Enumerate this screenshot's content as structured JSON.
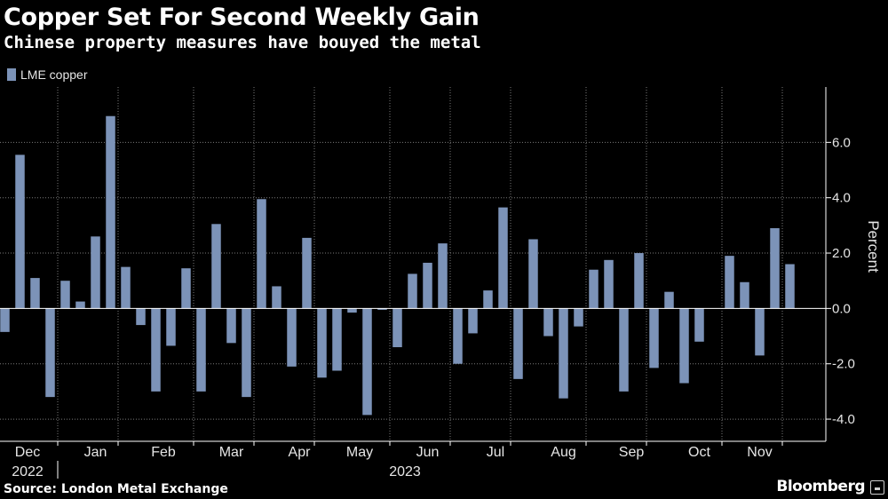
{
  "header": {
    "title": "Copper Set For Second Weekly Gain",
    "subtitle": "Chinese property measures have bouyed the metal"
  },
  "legend": {
    "label": "LME copper"
  },
  "footer": {
    "source": "Source: London Metal Exchange",
    "brand": "Bloomberg"
  },
  "colors": {
    "background": "#000000",
    "bar": "#7c93b8",
    "grid": "#7a7a7a",
    "axis": "#ffffff",
    "text": "#e6e6e6"
  },
  "chart_data": {
    "type": "bar",
    "ylabel": "Percent",
    "ylim": [
      -4.8,
      8.0
    ],
    "yticks": [
      -4.0,
      -2.0,
      0.0,
      2.0,
      4.0,
      6.0
    ],
    "ytick_labels": [
      "-4.0",
      "-2.0",
      "0.0",
      "2.0",
      "4.0",
      "6.0"
    ],
    "grid": true,
    "legend_placement": "top-left",
    "y_axis_side": "right",
    "month_labels": [
      "Dec",
      "Jan",
      "Feb",
      "Mar",
      "Apr",
      "May",
      "Jun",
      "Jul",
      "Aug",
      "Sep",
      "Oct",
      "Nov"
    ],
    "month_week_index": [
      1.5,
      6.0,
      10.5,
      15.0,
      19.5,
      23.5,
      28.0,
      32.5,
      37.0,
      41.5,
      46.0,
      50.0
    ],
    "month_boundaries": [
      4,
      8,
      13,
      17,
      21,
      26,
      30,
      34,
      39,
      43,
      48,
      52
    ],
    "year_labels": [
      {
        "label": "2022",
        "week_index": 1.5
      },
      {
        "label": "2023",
        "week_index": 26.5
      }
    ],
    "year_divider_week_index": 4,
    "series": [
      {
        "name": "LME copper",
        "values": [
          -0.85,
          5.55,
          1.1,
          -3.2,
          1.0,
          0.25,
          2.6,
          6.95,
          1.5,
          -0.6,
          -3.0,
          -1.35,
          1.45,
          -3.0,
          3.05,
          -1.25,
          -3.2,
          3.95,
          0.8,
          -2.1,
          2.55,
          -2.5,
          -2.25,
          -0.15,
          -3.85,
          -0.05,
          -1.4,
          1.25,
          1.65,
          2.35,
          -2.0,
          -0.9,
          0.65,
          3.65,
          -2.55,
          2.5,
          -1.0,
          -3.25,
          -0.65,
          1.4,
          1.75,
          -3.0,
          2.0,
          -2.15,
          0.6,
          -2.7,
          -1.2,
          0.0,
          1.9,
          0.95,
          -1.7,
          2.9,
          1.6
        ]
      }
    ]
  }
}
